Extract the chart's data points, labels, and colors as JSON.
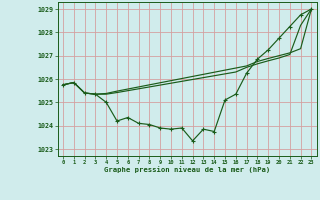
{
  "title": "Graphe pression niveau de la mer (hPa)",
  "bg_color": "#d0ecec",
  "grid_color": "#d4a0a0",
  "line_color": "#1a5c1a",
  "ylim": [
    1022.7,
    1029.3
  ],
  "xlim": [
    -0.5,
    23.5
  ],
  "yticks": [
    1023,
    1024,
    1025,
    1026,
    1027,
    1028,
    1029
  ],
  "xticks": [
    0,
    1,
    2,
    3,
    4,
    5,
    6,
    7,
    8,
    9,
    10,
    11,
    12,
    13,
    14,
    15,
    16,
    17,
    18,
    19,
    20,
    21,
    22,
    23
  ],
  "series_wavy": [
    1025.75,
    1025.85,
    1025.4,
    1025.35,
    1025.0,
    1024.2,
    1024.35,
    1024.1,
    1024.05,
    1023.9,
    1023.85,
    1023.9,
    1023.35,
    1023.85,
    1023.75,
    1025.1,
    1025.35,
    1026.25,
    1026.85,
    1027.25,
    1027.75,
    1028.25,
    1028.75,
    1029.0
  ],
  "series_straight_low": [
    1025.75,
    1025.85,
    1025.4,
    1025.35,
    1025.35,
    1025.42,
    1025.5,
    1025.58,
    1025.66,
    1025.74,
    1025.82,
    1025.9,
    1025.98,
    1026.06,
    1026.14,
    1026.22,
    1026.3,
    1026.5,
    1026.65,
    1026.78,
    1026.9,
    1027.05,
    1028.3,
    1029.0
  ],
  "series_straight_high": [
    1025.75,
    1025.85,
    1025.4,
    1025.35,
    1025.38,
    1025.48,
    1025.57,
    1025.66,
    1025.75,
    1025.84,
    1025.93,
    1026.02,
    1026.11,
    1026.2,
    1026.29,
    1026.38,
    1026.47,
    1026.56,
    1026.75,
    1026.88,
    1027.0,
    1027.12,
    1027.3,
    1029.0
  ]
}
